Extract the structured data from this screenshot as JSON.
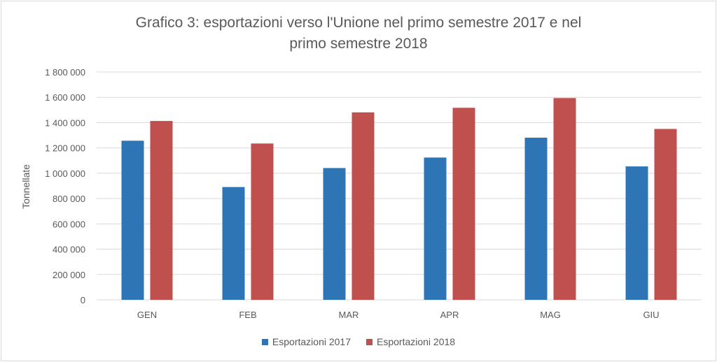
{
  "chart_data": {
    "type": "bar",
    "title": "Grafico 3: esportazioni verso l'Unione nel primo semestre 2017 e nel primo semestre 2018",
    "title_lines": [
      "Grafico 3: esportazioni verso l'Unione nel primo semestre 2017 e nel",
      "primo semestre 2018"
    ],
    "xlabel": "",
    "ylabel": "Tonnellate",
    "ylim": [
      0,
      1800000
    ],
    "yticks": [
      0,
      200000,
      400000,
      600000,
      800000,
      1000000,
      1200000,
      1400000,
      1600000,
      1800000
    ],
    "ytick_labels": [
      "0",
      "200 000",
      "400 000",
      "600 000",
      "800 000",
      "1 000 000",
      "1 200 000",
      "1 400 000",
      "1 600 000",
      "1 800 000"
    ],
    "grid": true,
    "legend_position": "bottom",
    "categories": [
      "GEN",
      "FEB",
      "MAR",
      "APR",
      "MAG",
      "GIU"
    ],
    "series": [
      {
        "name": "Esportazioni 2017",
        "color": "#2e75b6",
        "values": [
          1257000,
          891000,
          1041000,
          1124000,
          1281000,
          1054000
        ]
      },
      {
        "name": "Esportazioni 2018",
        "color": "#c0504d",
        "values": [
          1413000,
          1235000,
          1481000,
          1517000,
          1594000,
          1350000
        ]
      }
    ]
  }
}
